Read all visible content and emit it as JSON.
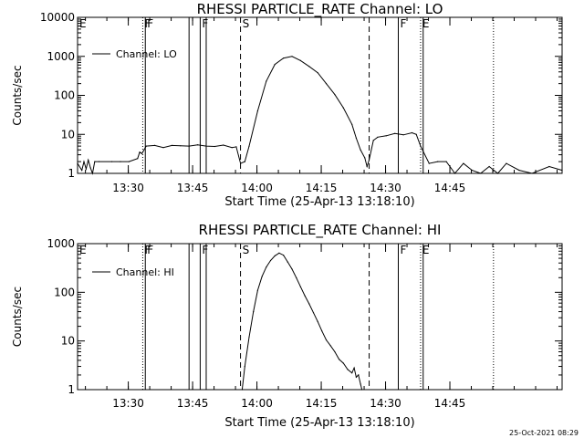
{
  "footer": {
    "timestamp": "25-Oct-2021 08:29"
  },
  "chart_data": [
    {
      "type": "line",
      "title": "RHESSI PARTICLE_RATE Channel: LO",
      "xlabel": "Start Time (25-Apr-13 13:18:10)",
      "ylabel": "Counts/sec",
      "x_unit": "minutes after 13:18:10",
      "xlim": [
        0,
        113
      ],
      "ylim": [
        1,
        10000
      ],
      "yscale": "log",
      "x_ticks": [
        {
          "value": 11.83,
          "label": "13:30"
        },
        {
          "value": 26.83,
          "label": "13:45"
        },
        {
          "value": 41.83,
          "label": "14:00"
        },
        {
          "value": 56.83,
          "label": "14:15"
        },
        {
          "value": 71.83,
          "label": "14:30"
        },
        {
          "value": 86.83,
          "label": "14:45"
        }
      ],
      "y_ticks": [
        {
          "value": 1,
          "label": "1"
        },
        {
          "value": 10,
          "label": "10"
        },
        {
          "value": 100,
          "label": "100"
        },
        {
          "value": 1000,
          "label": "1000"
        },
        {
          "value": 10000,
          "label": "10000"
        }
      ],
      "legend": {
        "position": "top-left",
        "entries": [
          "Channel: LO"
        ]
      },
      "markers": [
        {
          "x": 0,
          "label": "E",
          "style": "dotted"
        },
        {
          "x": 15.2,
          "label": "F",
          "style": "dotted"
        },
        {
          "x": 15.8,
          "label": "F",
          "style": "solid"
        },
        {
          "x": 26.0,
          "label": "",
          "style": "solid"
        },
        {
          "x": 28.6,
          "label": "F",
          "style": "solid"
        },
        {
          "x": 30.0,
          "label": "",
          "style": "solid"
        },
        {
          "x": 38.0,
          "label": "S",
          "style": "dashed"
        },
        {
          "x": 68.0,
          "label": "",
          "style": "dashed"
        },
        {
          "x": 74.8,
          "label": "F",
          "style": "solid"
        },
        {
          "x": 80.0,
          "label": "E",
          "style": "dotted"
        },
        {
          "x": 80.6,
          "label": "",
          "style": "solid"
        },
        {
          "x": 97.0,
          "label": "",
          "style": "dotted"
        }
      ],
      "series": [
        {
          "name": "Channel: LO",
          "x": [
            0,
            1,
            1.5,
            2,
            2.5,
            3,
            3.5,
            4,
            5,
            8,
            10,
            12,
            14,
            14.5,
            15,
            16,
            18,
            20,
            22,
            24,
            26,
            28,
            30,
            32,
            34,
            36,
            37,
            38,
            39,
            40,
            42,
            44,
            46,
            48,
            50,
            52,
            54,
            56,
            58,
            60,
            62,
            64,
            65,
            66,
            67,
            67.5,
            68,
            69,
            70,
            72,
            74,
            76,
            78,
            79,
            80,
            82,
            84,
            86,
            88,
            90,
            92,
            94,
            96,
            98,
            100,
            103,
            106,
            110,
            113
          ],
          "y": [
            1.8,
            1.2,
            2.0,
            1.3,
            2.2,
            1.4,
            1.0,
            2.0,
            2.0,
            2.0,
            2.0,
            2.0,
            2.4,
            3.5,
            3.2,
            5.0,
            5.2,
            4.6,
            5.2,
            5.1,
            5.0,
            5.4,
            5.0,
            4.9,
            5.3,
            4.6,
            4.8,
            1.8,
            2.0,
            5.0,
            40,
            230,
            620,
            900,
            1000,
            780,
            550,
            380,
            200,
            105,
            48,
            18,
            8,
            4,
            2.5,
            1.5,
            2.2,
            7,
            8.5,
            9.2,
            10.5,
            9.7,
            11,
            10,
            5.0,
            1.8,
            2.0,
            2.0,
            1.0,
            1.8,
            1.2,
            1.0,
            1.5,
            1.0,
            1.8,
            1.2,
            1.0,
            1.5,
            1.2
          ]
        }
      ]
    },
    {
      "type": "line",
      "title": "RHESSI PARTICLE_RATE Channel: HI",
      "xlabel": "Start Time (25-Apr-13 13:18:10)",
      "ylabel": "Counts/sec",
      "x_unit": "minutes after 13:18:10",
      "xlim": [
        0,
        113
      ],
      "ylim": [
        1,
        1000
      ],
      "yscale": "log",
      "x_ticks": [
        {
          "value": 11.83,
          "label": "13:30"
        },
        {
          "value": 26.83,
          "label": "13:45"
        },
        {
          "value": 41.83,
          "label": "14:00"
        },
        {
          "value": 56.83,
          "label": "14:15"
        },
        {
          "value": 71.83,
          "label": "14:30"
        },
        {
          "value": 86.83,
          "label": "14:45"
        }
      ],
      "y_ticks": [
        {
          "value": 1,
          "label": "1"
        },
        {
          "value": 10,
          "label": "10"
        },
        {
          "value": 100,
          "label": "100"
        },
        {
          "value": 1000,
          "label": "1000"
        }
      ],
      "legend": {
        "position": "top-left",
        "entries": [
          "Channel: HI"
        ]
      },
      "markers": [
        {
          "x": 0,
          "label": "E",
          "style": "dotted"
        },
        {
          "x": 15.2,
          "label": "F",
          "style": "dotted"
        },
        {
          "x": 15.8,
          "label": "F",
          "style": "solid"
        },
        {
          "x": 26.0,
          "label": "",
          "style": "solid"
        },
        {
          "x": 28.6,
          "label": "F",
          "style": "solid"
        },
        {
          "x": 30.0,
          "label": "",
          "style": "solid"
        },
        {
          "x": 38.0,
          "label": "S",
          "style": "dashed"
        },
        {
          "x": 68.0,
          "label": "",
          "style": "dashed"
        },
        {
          "x": 74.8,
          "label": "F",
          "style": "solid"
        },
        {
          "x": 80.0,
          "label": "E",
          "style": "dotted"
        },
        {
          "x": 80.6,
          "label": "",
          "style": "solid"
        },
        {
          "x": 97.0,
          "label": "",
          "style": "dotted"
        }
      ],
      "series": [
        {
          "name": "Channel: HI",
          "x": [
            38.4,
            39,
            40,
            41,
            42,
            43,
            44,
            45,
            46,
            47,
            48,
            49,
            50,
            51,
            52,
            53,
            54,
            55,
            56,
            57,
            58,
            59,
            60,
            61,
            62,
            63,
            64,
            64.5,
            65,
            65.5,
            66,
            66.3
          ],
          "y": [
            1.0,
            3,
            12,
            40,
            110,
            210,
            330,
            450,
            560,
            640,
            580,
            420,
            300,
            200,
            130,
            85,
            58,
            38,
            25,
            16,
            10.5,
            8,
            6,
            4.2,
            3.5,
            2.6,
            2.2,
            2.8,
            1.8,
            2.0,
            1.3,
            1.0
          ]
        }
      ]
    }
  ]
}
